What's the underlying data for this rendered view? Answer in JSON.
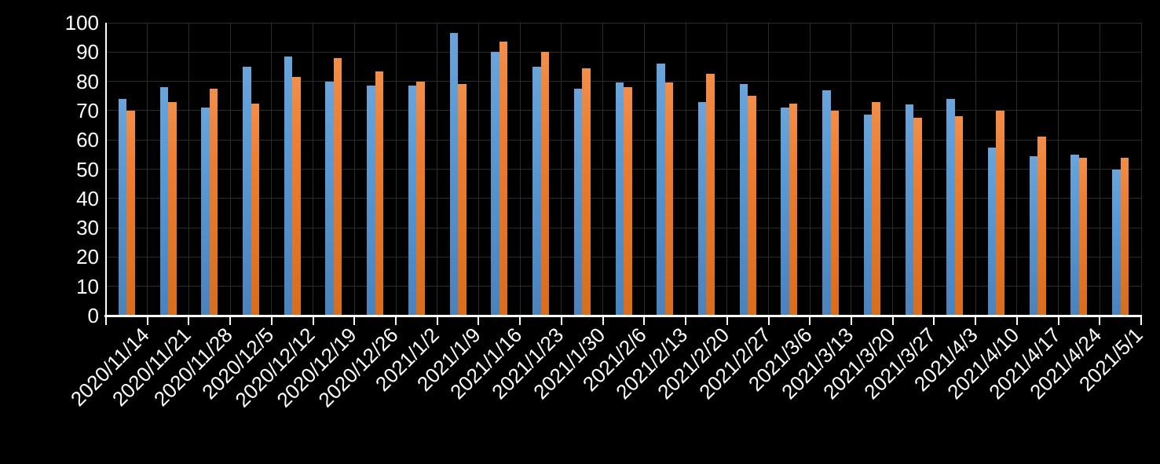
{
  "background_color": "#000000",
  "text_color": "#ffffff",
  "axis_color": "#ffffff",
  "grid_color": "#2b2b2b",
  "chart_data": {
    "type": "bar",
    "title": "",
    "xlabel": "",
    "ylabel": "",
    "ylim": [
      0,
      100
    ],
    "yticks": [
      0,
      10,
      20,
      30,
      40,
      50,
      60,
      70,
      80,
      90,
      100
    ],
    "grid": true,
    "legend": "none",
    "categories": [
      "2020/11/14",
      "2020/11/21",
      "2020/11/28",
      "2020/12/5",
      "2020/12/12",
      "2020/12/19",
      "2020/12/26",
      "2021/1/2",
      "2021/1/9",
      "2021/1/16",
      "2021/1/23",
      "2021/1/30",
      "2021/2/6",
      "2021/2/13",
      "2021/2/20",
      "2021/2/27",
      "2021/3/6",
      "2021/3/13",
      "2021/3/20",
      "2021/3/27",
      "2021/4/3",
      "2021/4/10",
      "2021/4/17",
      "2021/4/24",
      "2021/5/1"
    ],
    "series": [
      {
        "color": "#5B9BD5",
        "values": [
          74,
          78,
          71,
          85,
          88.5,
          80,
          78.5,
          78.5,
          96.5,
          90,
          85,
          77.5,
          79.5,
          86,
          73,
          79,
          71,
          77,
          68.5,
          72,
          74,
          57.5,
          54.5,
          55,
          50
        ]
      },
      {
        "color": "#ED7D31",
        "values": [
          70,
          73,
          77.5,
          72.5,
          81.5,
          88,
          83.5,
          80,
          79,
          93.5,
          90,
          84.5,
          78,
          79.5,
          82.5,
          75,
          72.5,
          70,
          73,
          67.5,
          68,
          70,
          61,
          54,
          54
        ]
      }
    ]
  }
}
